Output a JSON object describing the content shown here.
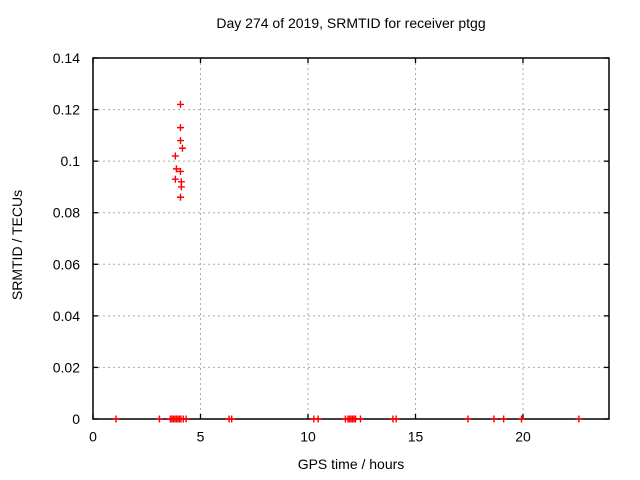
{
  "chart_data": {
    "type": "scatter",
    "title": "Day 274 of 2019, SRMTID for receiver ptgg",
    "xlabel": "GPS time / hours",
    "ylabel": "SRMTID / TECUs",
    "xlim": [
      0,
      24
    ],
    "ylim": [
      0,
      0.14
    ],
    "xticks": [
      0,
      5,
      10,
      15,
      20
    ],
    "xtick_labels": [
      "0",
      "5",
      "10",
      "15",
      "20"
    ],
    "yticks": [
      0,
      0.02,
      0.04,
      0.06,
      0.08,
      0.1,
      0.12,
      0.14
    ],
    "ytick_labels": [
      "0",
      "0.02",
      "0.04",
      "0.06",
      "0.08",
      "0.1",
      "0.12",
      "0.14"
    ],
    "grid": true,
    "legend": "none",
    "marker": "plus",
    "marker_size": 7,
    "colors": {
      "marker": "#ff0000",
      "grid": "#aaaaaa",
      "axis": "#000000",
      "background": "#ffffff",
      "text": "#000000"
    },
    "points": [
      [
        1.07,
        0
      ],
      [
        3.09,
        0
      ],
      [
        3.6,
        0
      ],
      [
        3.67,
        0
      ],
      [
        3.74,
        0
      ],
      [
        3.81,
        0
      ],
      [
        3.88,
        0
      ],
      [
        3.95,
        0
      ],
      [
        4.02,
        0
      ],
      [
        4.09,
        0
      ],
      [
        4.2,
        0
      ],
      [
        4.33,
        0
      ],
      [
        3.83,
        0.102
      ],
      [
        3.83,
        0.093
      ],
      [
        3.88,
        0.097
      ],
      [
        4.07,
        0.122
      ],
      [
        4.07,
        0.113
      ],
      [
        4.07,
        0.108
      ],
      [
        4.07,
        0.096
      ],
      [
        4.07,
        0.086
      ],
      [
        4.11,
        0.092
      ],
      [
        4.11,
        0.09
      ],
      [
        4.16,
        0.105
      ],
      [
        6.33,
        0
      ],
      [
        6.45,
        0
      ],
      [
        10.27,
        0
      ],
      [
        10.47,
        0
      ],
      [
        11.74,
        0
      ],
      [
        11.86,
        0
      ],
      [
        11.93,
        0
      ],
      [
        12.0,
        0
      ],
      [
        12.07,
        0
      ],
      [
        12.14,
        0
      ],
      [
        12.21,
        0
      ],
      [
        12.44,
        0
      ],
      [
        13.95,
        0
      ],
      [
        14.1,
        0
      ],
      [
        17.44,
        0
      ],
      [
        18.65,
        0
      ],
      [
        19.1,
        0
      ],
      [
        19.93,
        0
      ],
      [
        22.6,
        0
      ]
    ]
  }
}
